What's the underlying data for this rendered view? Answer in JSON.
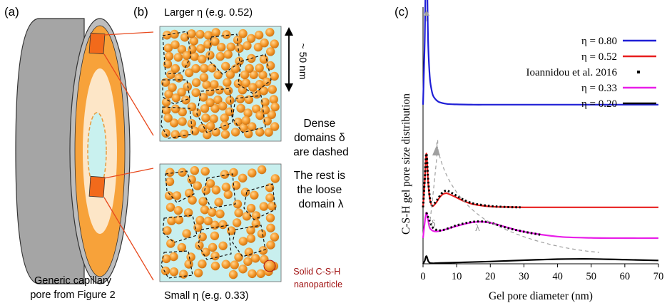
{
  "panel_labels": {
    "a": "(a)",
    "b": "(b)",
    "c": "(c)"
  },
  "panel_a": {
    "caption_line1": "Generic capillary",
    "caption_line2": "pore from Figure 2"
  },
  "panel_b": {
    "top_title": "Larger η (e.g. 0.52)",
    "bottom_title": "Small η (e.g. 0.33)",
    "scale_label": "~ 50 nm",
    "note1": [
      "Dense",
      "domains δ",
      "are dashed"
    ],
    "note2": [
      "The rest is",
      "the loose",
      "domain λ"
    ],
    "particle_label": [
      "Solid C-S-H",
      "nanoparticle"
    ]
  },
  "colors": {
    "gray_outer": "#a5a5a5",
    "orange": "#f7a23a",
    "light_orange": "#fde6c7",
    "cyan": "#c9f1ef",
    "box_bg": "#c8efee",
    "red_line": "#e8491d",
    "dark_red_text": "#a01010",
    "eta080": "#1f1fd6",
    "eta052": "#e81e1e",
    "eta033": "#e81ee8",
    "eta020": "#000000",
    "dashed_gray": "#a0a0a0"
  },
  "chart_data": {
    "type": "line",
    "title": "",
    "xlabel": "Gel pore diameter (nm)",
    "ylabel": "C-S-H gel pore size distribution",
    "xlim": [
      0,
      70
    ],
    "xticks": [
      0,
      10,
      20,
      30,
      40,
      50,
      60,
      70
    ],
    "yticks": "none (vertically offset curves)",
    "legend_position": "top-right",
    "series": [
      {
        "name": "η = 0.80",
        "offset": 0.62,
        "x": [
          0,
          0.5,
          1,
          1.5,
          2,
          2.5,
          3,
          4,
          5,
          7,
          10,
          15,
          20,
          30,
          40,
          50,
          60,
          70
        ],
        "y": [
          0,
          0.25,
          0.6,
          0.25,
          0.11,
          0.06,
          0.035,
          0.017,
          0.009,
          0.003,
          0.001,
          0,
          0,
          0,
          0,
          0,
          0,
          0
        ]
      },
      {
        "name": "η = 0.52",
        "offset": 0.22,
        "x": [
          0,
          0.5,
          1,
          1.5,
          2,
          2.5,
          3,
          4,
          5,
          6,
          7,
          8,
          10,
          12,
          15,
          20,
          25,
          30,
          40,
          50,
          60,
          70
        ],
        "y": [
          0,
          0.1,
          0.21,
          0.1,
          0.035,
          0.01,
          0.005,
          0.02,
          0.04,
          0.052,
          0.055,
          0.05,
          0.038,
          0.025,
          0.012,
          0.003,
          0.001,
          0,
          0,
          0,
          0,
          0
        ]
      },
      {
        "name": "Ioannidou et al. 2016",
        "style": "dotted",
        "x": [
          0,
          0.5,
          1,
          1.5,
          2,
          2.5,
          3,
          4,
          5,
          6,
          7,
          8,
          10,
          12,
          15,
          20,
          25,
          29,
          1,
          2,
          3,
          5,
          8,
          10,
          14,
          17,
          20,
          25,
          30,
          35
        ],
        "y": [
          0.22,
          0.33,
          0.43,
          0.33,
          0.26,
          0.23,
          0.23,
          0.245,
          0.265,
          0.28,
          0.285,
          0.28,
          0.265,
          0.25,
          0.235,
          0.225,
          0.221,
          0.22,
          0.2,
          0.165,
          0.14,
          0.13,
          0.14,
          0.15,
          0.162,
          0.165,
          0.16,
          0.14,
          0.125,
          0.113
        ],
        "note": "first 18 points follow η=0.52 curve; remaining points follow η=0.33 curve"
      },
      {
        "name": "η = 0.33",
        "offset": 0.1,
        "x": [
          0,
          0.5,
          1,
          1.5,
          2,
          3,
          4,
          5,
          7,
          10,
          14,
          17,
          20,
          25,
          30,
          40,
          50,
          60,
          70
        ],
        "y": [
          0,
          0.06,
          0.1,
          0.07,
          0.04,
          0.028,
          0.026,
          0.028,
          0.035,
          0.047,
          0.06,
          0.064,
          0.06,
          0.042,
          0.025,
          0.006,
          0.001,
          0,
          0
        ]
      },
      {
        "name": "η = 0.20",
        "offset": 0.0,
        "x": [
          0,
          0.5,
          1,
          1.5,
          2,
          3,
          5,
          10,
          20,
          30,
          40,
          45,
          50,
          60,
          70
        ],
        "y": [
          0,
          0.012,
          0.03,
          0.012,
          0.004,
          0.002,
          0.003,
          0.005,
          0.009,
          0.014,
          0.018,
          0.019,
          0.019,
          0.016,
          0.013
        ]
      }
    ],
    "annotations": [
      "δ",
      "λ"
    ]
  }
}
